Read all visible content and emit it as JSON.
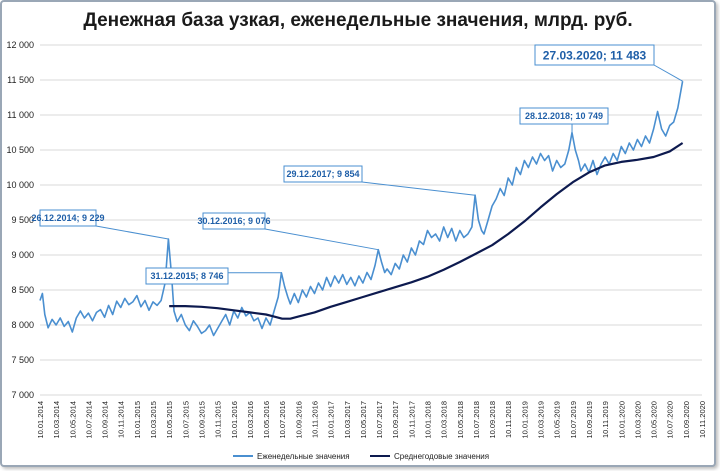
{
  "chart_data": {
    "type": "line",
    "title": "Денежная база узкая, еженедельные значения, млрд. руб.",
    "ylim": [
      7000,
      12000
    ],
    "yticks": [
      "7 000",
      "7 500",
      "8 000",
      "8 500",
      "9 000",
      "9 500",
      "10 000",
      "10 500",
      "11 000",
      "11 500",
      "12 000"
    ],
    "ytick_values": [
      7000,
      7500,
      8000,
      8500,
      9000,
      9500,
      10000,
      10500,
      11000,
      11500,
      12000
    ],
    "xticks": [
      "10.01.2014",
      "10.03.2014",
      "10.05.2014",
      "10.07.2014",
      "10.09.2014",
      "10.11.2014",
      "10.01.2015",
      "10.03.2015",
      "10.05.2015",
      "10.07.2015",
      "10.09.2015",
      "10.11.2015",
      "10.01.2016",
      "10.03.2016",
      "10.05.2016",
      "10.07.2016",
      "10.09.2016",
      "10.11.2016",
      "10.01.2017",
      "10.03.2017",
      "10.05.2017",
      "10.07.2017",
      "10.09.2017",
      "10.11.2017",
      "10.01.2018",
      "10.03.2018",
      "10.05.2018",
      "10.07.2018",
      "10.09.2018",
      "10.11.2018",
      "10.01.2019",
      "10.03.2019",
      "10.05.2019",
      "10.07.2019",
      "10.09.2019",
      "10.11.2019",
      "10.01.2020",
      "10.03.2020",
      "10.05.2020",
      "10.07.2020",
      "10.09.2020",
      "10.11.2020"
    ],
    "xlim_months": [
      0,
      82
    ],
    "series": [
      {
        "name": "Еженедельные значения",
        "color": "#4a8fd0",
        "points": [
          [
            0.0,
            8350
          ],
          [
            0.3,
            8450
          ],
          [
            0.6,
            8150
          ],
          [
            1.0,
            7960
          ],
          [
            1.5,
            8080
          ],
          [
            2.0,
            8000
          ],
          [
            2.5,
            8100
          ],
          [
            3.0,
            7980
          ],
          [
            3.5,
            8050
          ],
          [
            4.0,
            7900
          ],
          [
            4.5,
            8100
          ],
          [
            5.0,
            8200
          ],
          [
            5.5,
            8100
          ],
          [
            6.0,
            8170
          ],
          [
            6.5,
            8060
          ],
          [
            7.0,
            8180
          ],
          [
            7.5,
            8220
          ],
          [
            8.0,
            8110
          ],
          [
            8.5,
            8280
          ],
          [
            9.0,
            8150
          ],
          [
            9.5,
            8340
          ],
          [
            10.0,
            8250
          ],
          [
            10.5,
            8380
          ],
          [
            11.0,
            8290
          ],
          [
            11.5,
            8330
          ],
          [
            12.0,
            8420
          ],
          [
            12.5,
            8260
          ],
          [
            13.0,
            8350
          ],
          [
            13.5,
            8210
          ],
          [
            14.0,
            8330
          ],
          [
            14.5,
            8280
          ],
          [
            15.0,
            8350
          ],
          [
            15.5,
            8600
          ],
          [
            15.9,
            9229
          ],
          [
            16.3,
            8700
          ],
          [
            16.6,
            8200
          ],
          [
            17.0,
            8050
          ],
          [
            17.5,
            8150
          ],
          [
            18.0,
            8000
          ],
          [
            18.5,
            7920
          ],
          [
            19.0,
            8060
          ],
          [
            19.5,
            7980
          ],
          [
            20.0,
            7880
          ],
          [
            20.5,
            7920
          ],
          [
            21.0,
            8000
          ],
          [
            21.5,
            7850
          ],
          [
            22.0,
            7950
          ],
          [
            22.5,
            8050
          ],
          [
            23.0,
            8150
          ],
          [
            23.5,
            8000
          ],
          [
            24.0,
            8200
          ],
          [
            24.5,
            8100
          ],
          [
            25.0,
            8250
          ],
          [
            25.5,
            8130
          ],
          [
            26.0,
            8180
          ],
          [
            26.5,
            8060
          ],
          [
            27.0,
            8100
          ],
          [
            27.5,
            7950
          ],
          [
            28.0,
            8100
          ],
          [
            28.5,
            8000
          ],
          [
            29.0,
            8200
          ],
          [
            29.5,
            8400
          ],
          [
            29.9,
            8746
          ],
          [
            30.3,
            8550
          ],
          [
            30.7,
            8400
          ],
          [
            31.0,
            8300
          ],
          [
            31.5,
            8450
          ],
          [
            32.0,
            8320
          ],
          [
            32.5,
            8500
          ],
          [
            33.0,
            8400
          ],
          [
            33.5,
            8550
          ],
          [
            34.0,
            8450
          ],
          [
            34.5,
            8600
          ],
          [
            35.0,
            8500
          ],
          [
            35.5,
            8680
          ],
          [
            36.0,
            8550
          ],
          [
            36.5,
            8700
          ],
          [
            37.0,
            8600
          ],
          [
            37.5,
            8720
          ],
          [
            38.0,
            8580
          ],
          [
            38.5,
            8680
          ],
          [
            39.0,
            8560
          ],
          [
            39.5,
            8700
          ],
          [
            40.0,
            8600
          ],
          [
            40.5,
            8750
          ],
          [
            41.0,
            8650
          ],
          [
            41.5,
            8850
          ],
          [
            41.9,
            9076
          ],
          [
            42.3,
            8900
          ],
          [
            42.7,
            8750
          ],
          [
            43.0,
            8800
          ],
          [
            43.5,
            8720
          ],
          [
            44.0,
            8880
          ],
          [
            44.5,
            8800
          ],
          [
            45.0,
            9000
          ],
          [
            45.5,
            8900
          ],
          [
            46.0,
            9100
          ],
          [
            46.5,
            9000
          ],
          [
            47.0,
            9200
          ],
          [
            47.5,
            9150
          ],
          [
            48.0,
            9350
          ],
          [
            48.5,
            9250
          ],
          [
            49.0,
            9300
          ],
          [
            49.5,
            9200
          ],
          [
            50.0,
            9400
          ],
          [
            50.5,
            9250
          ],
          [
            51.0,
            9380
          ],
          [
            51.5,
            9200
          ],
          [
            52.0,
            9350
          ],
          [
            52.5,
            9250
          ],
          [
            53.0,
            9300
          ],
          [
            53.5,
            9400
          ],
          [
            53.9,
            9854
          ],
          [
            54.3,
            9500
          ],
          [
            54.7,
            9350
          ],
          [
            55.0,
            9300
          ],
          [
            55.5,
            9500
          ],
          [
            56.0,
            9700
          ],
          [
            56.5,
            9800
          ],
          [
            57.0,
            9950
          ],
          [
            57.5,
            9850
          ],
          [
            58.0,
            10100
          ],
          [
            58.5,
            10000
          ],
          [
            59.0,
            10250
          ],
          [
            59.5,
            10150
          ],
          [
            60.0,
            10350
          ],
          [
            60.5,
            10250
          ],
          [
            61.0,
            10400
          ],
          [
            61.5,
            10300
          ],
          [
            62.0,
            10450
          ],
          [
            62.5,
            10350
          ],
          [
            63.0,
            10420
          ],
          [
            63.5,
            10200
          ],
          [
            64.0,
            10350
          ],
          [
            64.5,
            10250
          ],
          [
            65.0,
            10300
          ],
          [
            65.5,
            10500
          ],
          [
            65.9,
            10749
          ],
          [
            66.3,
            10500
          ],
          [
            66.7,
            10350
          ],
          [
            67.0,
            10200
          ],
          [
            67.5,
            10300
          ],
          [
            68.0,
            10180
          ],
          [
            68.5,
            10350
          ],
          [
            69.0,
            10150
          ],
          [
            69.5,
            10300
          ],
          [
            70.0,
            10400
          ],
          [
            70.5,
            10300
          ],
          [
            71.0,
            10450
          ],
          [
            71.5,
            10350
          ],
          [
            72.0,
            10550
          ],
          [
            72.5,
            10450
          ],
          [
            73.0,
            10600
          ],
          [
            73.5,
            10500
          ],
          [
            74.0,
            10650
          ],
          [
            74.5,
            10550
          ],
          [
            75.0,
            10700
          ],
          [
            75.5,
            10600
          ],
          [
            76.0,
            10800
          ],
          [
            76.5,
            11050
          ],
          [
            77.0,
            10800
          ],
          [
            77.5,
            10700
          ],
          [
            78.0,
            10850
          ],
          [
            78.5,
            10900
          ],
          [
            79.0,
            11100
          ],
          [
            79.6,
            11483
          ]
        ]
      },
      {
        "name": "Среднегодовые значения",
        "color": "#0d1a4f",
        "points": [
          [
            16.0,
            8270
          ],
          [
            18.0,
            8270
          ],
          [
            20.0,
            8260
          ],
          [
            22.0,
            8240
          ],
          [
            24.0,
            8210
          ],
          [
            26.0,
            8180
          ],
          [
            28.0,
            8150
          ],
          [
            29.0,
            8120
          ],
          [
            30.0,
            8090
          ],
          [
            31.0,
            8090
          ],
          [
            32.0,
            8120
          ],
          [
            34.0,
            8180
          ],
          [
            36.0,
            8260
          ],
          [
            38.0,
            8330
          ],
          [
            40.0,
            8400
          ],
          [
            42.0,
            8470
          ],
          [
            44.0,
            8540
          ],
          [
            46.0,
            8610
          ],
          [
            48.0,
            8690
          ],
          [
            50.0,
            8790
          ],
          [
            52.0,
            8900
          ],
          [
            54.0,
            9020
          ],
          [
            56.0,
            9140
          ],
          [
            58.0,
            9300
          ],
          [
            60.0,
            9480
          ],
          [
            62.0,
            9680
          ],
          [
            64.0,
            9870
          ],
          [
            66.0,
            10040
          ],
          [
            68.0,
            10180
          ],
          [
            70.0,
            10280
          ],
          [
            72.0,
            10330
          ],
          [
            74.0,
            10360
          ],
          [
            76.0,
            10400
          ],
          [
            78.0,
            10480
          ],
          [
            79.6,
            10600
          ]
        ]
      }
    ],
    "annotations": [
      {
        "label": "26.12.2014; 9 229",
        "month": 15.9,
        "value": 9229
      },
      {
        "label": "31.12.2015; 8 746",
        "month": 29.9,
        "value": 8746
      },
      {
        "label": "30.12.2016; 9 076",
        "month": 41.9,
        "value": 9076
      },
      {
        "label": "29.12.2017; 9 854",
        "month": 53.9,
        "value": 9854
      },
      {
        "label": "28.12.2018; 10 749",
        "month": 65.9,
        "value": 10749
      },
      {
        "label": "27.03.2020; 11 483",
        "month": 79.6,
        "value": 11483
      }
    ],
    "legend_position": "bottom-center",
    "grid": "horizontal"
  }
}
